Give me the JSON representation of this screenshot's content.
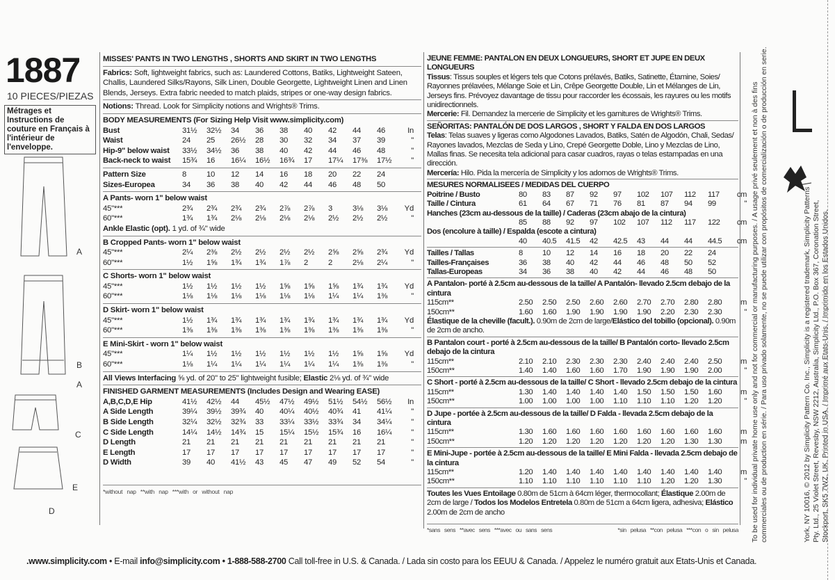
{
  "header": {
    "pattern_number": "1887",
    "pieces": "10 PIECES/PIEZAS",
    "french_note": "Métrages et Instructions de couture en Français à l'intérieur de l'enveloppe."
  },
  "view_labels": [
    "A",
    "B",
    "A",
    "C",
    "E",
    "D"
  ],
  "english": {
    "title": "MISSES' PANTS IN TWO LENGTHS , SHORTS AND SKIRT IN TWO LENGTHS",
    "fabrics_label": "Fabrics:",
    "fabrics_text": " Soft, lightweight fabrics, such as: Laundered Cottons, Batiks, Lightweight Sateen, Challis, Laundered Silks/Rayons, Silk Linen, Double Georgette, Lightweight Linen and Linen Blends, Jerseys. Extra fabric needed to match plaids, stripes or one-way design fabrics.",
    "notions_label": "Notions:",
    "notions_text": " Thread. Look for Simplicity notions and Wrights® Trims.",
    "body_title": "BODY MEASUREMENTS (For Sizing Help Visit www.simplicity.com)",
    "body_rows": [
      {
        "label": "Bust",
        "values": [
          "31½",
          "32½",
          "34",
          "36",
          "38",
          "40",
          "42",
          "44",
          "46"
        ],
        "unit": "In"
      },
      {
        "label": "Waist",
        "values": [
          "24",
          "25",
          "26½",
          "28",
          "30",
          "32",
          "34",
          "37",
          "39"
        ],
        "unit": "\""
      },
      {
        "label": "Hip-9\" below waist",
        "values": [
          "33½",
          "34½",
          "36",
          "38",
          "40",
          "42",
          "44",
          "46",
          "48"
        ],
        "unit": "\""
      },
      {
        "label": "Back-neck to waist",
        "values": [
          "15¾",
          "16",
          "16¼",
          "16½",
          "16¾",
          "17",
          "17¼",
          "17⅜",
          "17½"
        ],
        "unit": "\""
      }
    ],
    "size_rows": [
      {
        "label": "Pattern Size",
        "values": [
          "8",
          "10",
          "12",
          "14",
          "16",
          "18",
          "20",
          "22",
          "24"
        ],
        "unit": ""
      },
      {
        "label": "Sizes-Europea",
        "values": [
          "34",
          "36",
          "38",
          "40",
          "42",
          "44",
          "46",
          "48",
          "50"
        ],
        "unit": ""
      }
    ],
    "views": [
      {
        "title": "A Pants- worn 1\" below waist",
        "rows": [
          {
            "label": "45\"***",
            "values": [
              "2¾",
              "2¾",
              "2¾",
              "2¾",
              "2⅞",
              "2⅞",
              "3",
              "3⅛",
              "3⅛"
            ],
            "unit": "Yd"
          },
          {
            "label": "60\"***",
            "values": [
              "1¾",
              "1¾",
              "2⅛",
              "2⅛",
              "2⅛",
              "2⅛",
              "2½",
              "2½",
              "2½"
            ],
            "unit": "\""
          }
        ],
        "note_bold": "Ankle Elastic (opt).",
        "note": " 1 yd. of ¾\" wide"
      },
      {
        "title": "B Cropped Pants- worn 1\" below waist",
        "rows": [
          {
            "label": "45\"***",
            "values": [
              "2¼",
              "2⅜",
              "2½",
              "2½",
              "2½",
              "2½",
              "2⅝",
              "2⅝",
              "2¾"
            ],
            "unit": "Yd"
          },
          {
            "label": "60\"***",
            "values": [
              "1½",
              "1⅝",
              "1¾",
              "1¾",
              "1⅞",
              "2",
              "2",
              "2⅛",
              "2¼"
            ],
            "unit": "\""
          }
        ]
      },
      {
        "title": "C Shorts- worn 1\" below waist",
        "rows": [
          {
            "label": "45\"***",
            "values": [
              "1½",
              "1½",
              "1½",
              "1½",
              "1⅝",
              "1⅝",
              "1⅝",
              "1¾",
              "1¾"
            ],
            "unit": "Yd"
          },
          {
            "label": "60\"***",
            "values": [
              "1⅛",
              "1⅛",
              "1⅛",
              "1⅛",
              "1⅛",
              "1⅛",
              "1¼",
              "1¼",
              "1⅜"
            ],
            "unit": "\""
          }
        ]
      },
      {
        "title": "D Skirt- worn 1\" below waist",
        "rows": [
          {
            "label": "45\"***",
            "values": [
              "1½",
              "1¾",
              "1¾",
              "1¾",
              "1¾",
              "1¾",
              "1¾",
              "1¾",
              "1¾"
            ],
            "unit": "Yd"
          },
          {
            "label": "60\"***",
            "values": [
              "1⅜",
              "1⅜",
              "1⅜",
              "1⅜",
              "1⅜",
              "1⅜",
              "1⅜",
              "1⅜",
              "1⅜"
            ],
            "unit": "\""
          }
        ]
      },
      {
        "title": "E Mini-Skirt - worn 1\" below waist",
        "rows": [
          {
            "label": "45\"***",
            "values": [
              "1¼",
              "1½",
              "1½",
              "1½",
              "1½",
              "1½",
              "1½",
              "1⅝",
              "1⅝"
            ],
            "unit": "Yd"
          },
          {
            "label": "60\"***",
            "values": [
              "1⅛",
              "1¼",
              "1¼",
              "1¼",
              "1¼",
              "1¼",
              "1¼",
              "1⅜",
              "1⅜"
            ],
            "unit": "\""
          }
        ]
      }
    ],
    "interfacing_bold": "All Views Interfacing",
    "interfacing_text": " ⅝ yd. of 20\" to 25\" lightweight fusible; ",
    "elastic_bold": "Elastic",
    "elastic_text": " 2⅛ yd. of ¾\" wide",
    "finished_title": "FINISHED GARMENT MEASUREMENTS (Includes Design and Wearing EASE)",
    "finished_rows": [
      {
        "label": "A,B,C,D,E Hip",
        "values": [
          "41½",
          "42½",
          "44",
          "45½",
          "47½",
          "49½",
          "51½",
          "54½",
          "56½"
        ],
        "unit": "In"
      },
      {
        "label": "A Side Length",
        "values": [
          "39¼",
          "39½",
          "39¾",
          "40",
          "40¼",
          "40½",
          "40¾",
          "41",
          "41¼"
        ],
        "unit": "\""
      },
      {
        "label": "B Side Length",
        "values": [
          "32¼",
          "32½",
          "32¾",
          "33",
          "33¼",
          "33½",
          "33¾",
          "34",
          "34¼"
        ],
        "unit": "\""
      },
      {
        "label": "C Side Length",
        "values": [
          "14¼",
          "14½",
          "14¾",
          "15",
          "15¼",
          "15½",
          "15¾",
          "16",
          "16¼"
        ],
        "unit": "\""
      },
      {
        "label": "D Length",
        "values": [
          "21",
          "21",
          "21",
          "21",
          "21",
          "21",
          "21",
          "21",
          "21"
        ],
        "unit": "\""
      },
      {
        "label": "E Length",
        "values": [
          "17",
          "17",
          "17",
          "17",
          "17",
          "17",
          "17",
          "17",
          "17"
        ],
        "unit": "\""
      },
      {
        "label": "D Width",
        "values": [
          "39",
          "40",
          "41½",
          "43",
          "45",
          "47",
          "49",
          "52",
          "54"
        ],
        "unit": "\""
      }
    ],
    "footnote": "*without nap  **with nap  ***with or without nap"
  },
  "french_spanish": {
    "title_fr": "JEUNE FEMME: PANTALON EN DEUX LONGUEURS, SHORT ET JUPE EN DEUX LONGUEURS",
    "tissus_label": "Tissus",
    "tissus_text": ": Tissus souples et légers tels que Cotons prélavés, Batiks, Satinette, Étamine, Soies/ Rayonnes prélavées, Mélange Soie et Lin, Crêpe Georgette Double, Lin et Mélanges de Lin, Jerseys fins. Prévoyez davantage de tissu pour raccorder les écossais, les rayures ou les motifs unidirectionnels.",
    "mercerie_label": "Mercerie:",
    "mercerie_text": " Fil. Demandez la mercerie de Simplicity et les garnitures de Wrights® Trims.",
    "title_es": "SEÑORITAS: PANTALÓN DE DOS LARGOS , SHORT Y FALDA EN DOS LARGOS",
    "telas_label": "Telas",
    "telas_text": ": Telas suaves y ligeras como Algodones Lavados, Batiks, Satén de Algodón, Chali, Sedas/ Rayones lavados, Mezclas de Seda y Lino, Crepé Georgette Doble, Lino y Mezclas de Lino, Mallas finas. Se necesita tela adicional para casar cuadros, rayas o telas estampadas en una dirección.",
    "merceria_label": "Mercería:",
    "merceria_text": " Hilo. Pida la mercería de Simplicity y los adornos de Wrights® Trims.",
    "measures_title": "MESURES NORMALISEES / MEDIDAS DEL CUERPO",
    "measure_rows": [
      {
        "label": "Poitrine / Busto",
        "values": [
          "80",
          "83",
          "87",
          "92",
          "97",
          "102",
          "107",
          "112",
          "117"
        ],
        "unit": "cm"
      },
      {
        "label": "Taille / Cintura",
        "values": [
          "61",
          "64",
          "67",
          "71",
          "76",
          "81",
          "87",
          "94",
          "99"
        ],
        "unit": "\""
      },
      {
        "heading": "Hanches (23cm au-dessous de la taille) / Caderas (23cm abajo de la cintura)",
        "label": "",
        "values": [
          "85",
          "88",
          "92",
          "97",
          "102",
          "107",
          "112",
          "117",
          "122"
        ],
        "unit": "cm"
      },
      {
        "heading": "Dos (encolure à taille) / Espalda (escote a cintura)",
        "label": "",
        "values": [
          "40",
          "40.5",
          "41.5",
          "42",
          "42.5",
          "43",
          "44",
          "44",
          "44.5"
        ],
        "unit": "cm"
      }
    ],
    "size_rows": [
      {
        "label": "Tailles / Tallas",
        "values": [
          "8",
          "10",
          "12",
          "14",
          "16",
          "18",
          "20",
          "22",
          "24"
        ],
        "unit": ""
      },
      {
        "label": "Tailles-Françaises",
        "values": [
          "36",
          "38",
          "40",
          "42",
          "44",
          "46",
          "48",
          "50",
          "52"
        ],
        "unit": ""
      },
      {
        "label": "Tallas-Europeas",
        "values": [
          "34",
          "36",
          "38",
          "40",
          "42",
          "44",
          "46",
          "48",
          "50"
        ],
        "unit": ""
      }
    ],
    "views": [
      {
        "title": "A Pantalon- porté à 2.5cm au-dessous de la taille/ A Pantalón- llevado 2.5cm debajo de la cintura",
        "rows": [
          {
            "label": "115cm**",
            "values": [
              "2.50",
              "2.50",
              "2.50",
              "2.60",
              "2.60",
              "2.70",
              "2.70",
              "2.80",
              "2.80"
            ],
            "unit": "m"
          },
          {
            "label": "150cm**",
            "values": [
              "1.60",
              "1.60",
              "1.90",
              "1.90",
              "1.90",
              "1.90",
              "2.20",
              "2.30",
              "2.30"
            ],
            "unit": "\""
          }
        ],
        "note_bold": "Élastique de la cheville (facult.).",
        "note": " 0.90m de 2cm de large/",
        "note_bold2": "Elástico del tobillo (opcional).",
        "note2": " 0.90m de 2cm de ancho."
      },
      {
        "title": "B Pantalon court - porté à 2.5cm au-dessous de la taille/ B Pantalón corto- llevado 2.5cm debajo de la cintura",
        "rows": [
          {
            "label": "115cm**",
            "values": [
              "2.10",
              "2.10",
              "2.30",
              "2.30",
              "2.30",
              "2.40",
              "2.40",
              "2.40",
              "2.50"
            ],
            "unit": "m"
          },
          {
            "label": "150cm**",
            "values": [
              "1.40",
              "1.40",
              "1.60",
              "1.60",
              "1.70",
              "1.90",
              "1.90",
              "1.90",
              "2.00"
            ],
            "unit": "\""
          }
        ]
      },
      {
        "title": "C Short - porté à 2.5cm au-dessous de la taille/ C Short - llevado 2.5cm debajo de la cintura",
        "rows": [
          {
            "label": "115cm**",
            "values": [
              "1.30",
              "1.40",
              "1.40",
              "1.40",
              "1.40",
              "1.50",
              "1.50",
              "1.50",
              "1.60"
            ],
            "unit": "m"
          },
          {
            "label": "150cm**",
            "values": [
              "1.00",
              "1.00",
              "1.00",
              "1.00",
              "1.10",
              "1.10",
              "1.10",
              "1.20",
              "1.20"
            ],
            "unit": "\""
          }
        ]
      },
      {
        "title": "D Jupe - portée à 2.5cm au-dessous de la taille/ D Falda - llevada 2.5cm debajo de la cintura",
        "rows": [
          {
            "label": "115cm**",
            "values": [
              "1.30",
              "1.60",
              "1.60",
              "1.60",
              "1.60",
              "1.60",
              "1.60",
              "1.60",
              "1.60"
            ],
            "unit": "m"
          },
          {
            "label": "150cm**",
            "values": [
              "1.20",
              "1.20",
              "1.20",
              "1.20",
              "1.20",
              "1.20",
              "1.20",
              "1.30",
              "1.30"
            ],
            "unit": "m"
          }
        ]
      },
      {
        "title": "E Mini-Jupe - portée à 2.5cm au-dessous de la taille/ E Mini Falda - llevada 2.5cm debajo de la cintura",
        "rows": [
          {
            "label": "115cm**",
            "values": [
              "1.20",
              "1.40",
              "1.40",
              "1.40",
              "1.40",
              "1.40",
              "1.40",
              "1.40",
              "1.40"
            ],
            "unit": "m"
          },
          {
            "label": "150cm**",
            "values": [
              "1.10",
              "1.10",
              "1.10",
              "1.10",
              "1.10",
              "1.10",
              "1.20",
              "1.20",
              "1.30"
            ],
            "unit": "\""
          }
        ]
      }
    ],
    "entoilage_bold": "Toutes les Vues Entoilage",
    "entoilage_text": " 0.80m de 51cm à 64cm léger, thermocollant; ",
    "elastique_bold": "Élastique",
    "elastique_text": " 2.00m de 2cm de large / ",
    "entretela_bold": "Todos los Modelos Entretela",
    "entretela_text": " 0.80m de 51cm a 64cm ligera, adhesiva; ",
    "elastico_bold": "Elástico",
    "elastico_text": " 2.00m de 2cm de ancho",
    "footnote_fr": "*sans sens  **avec sens  ***avec ou sans sens",
    "footnote_es": "*sin pelusa  **con pelusa  ***con o sin pelusa"
  },
  "side_text": {
    "usage_1": "To be used for individual private home use only and not for commercial or manufacturing purposes. / A usage privé seulement et non à des fins",
    "usage_2": "commerciales ou de production en série. / Para uso privado solamente, no se puede utilizar con propósitos de comercialización o de producción en serie.",
    "copyright_1": "York, NY 10016, © 2012 by Simplicity Pattern Co. Inc., Simplicity is a registered trademark, Simplicity Patterns",
    "copyright_2": "Pty. Ltd., 25 Violet Street, Revesby, NSW 2212, Australia, Simplicity Ltd., P.O. Box 367, Coronation Street,",
    "copyright_3": "Stockport, SK5 7WZ, UK. Printed in USA. / Imprimé aux Etats-Unis. / Imprimido en los Estados Unidos."
  },
  "footer": {
    "website": ".www.simplicity.com",
    "email_label": " • E-mail ",
    "email": "info@simplicity.com",
    "phone": " • 1-888-588-2700",
    "tollfree": " Call toll-free in U.S. & Canada. / Lada sin costo para los EEUU & Canada. / Appelez le numéro gratuit aux Etats-Unis et Canada."
  }
}
